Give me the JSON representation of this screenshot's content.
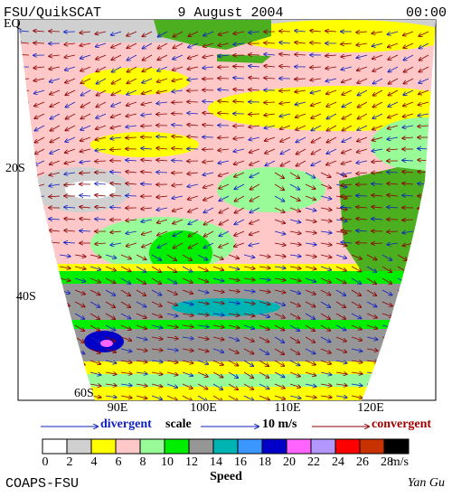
{
  "header": {
    "title": "FSU/QuikSCAT",
    "date": "9 August 2004",
    "time": "00:00"
  },
  "map": {
    "lat_labels": [
      "EQ",
      "20S",
      "40S",
      "60S"
    ],
    "lon_labels": [
      "90E",
      "100E",
      "110E",
      "120E"
    ]
  },
  "legend": {
    "divergent": "divergent",
    "scale": "scale",
    "scale_value": "10 m/s",
    "convergent": "convergent"
  },
  "colorbar": {
    "ticks": [
      0,
      2,
      4,
      6,
      8,
      10,
      12,
      14,
      16,
      18,
      20,
      22,
      24,
      26,
      28
    ],
    "unit": "m/s",
    "title": "Speed",
    "colors": [
      "#ffffff",
      "#d0d0d0",
      "#ffff00",
      "#ffc8c8",
      "#98fb98",
      "#00ee00",
      "#969696",
      "#00b4b4",
      "#3c96ff",
      "#0000c8",
      "#ff64ff",
      "#b496ff",
      "#ff0000",
      "#c83200",
      "#000000"
    ]
  },
  "footer": {
    "left": "COAPS-FSU",
    "right": "Yan Gu"
  }
}
